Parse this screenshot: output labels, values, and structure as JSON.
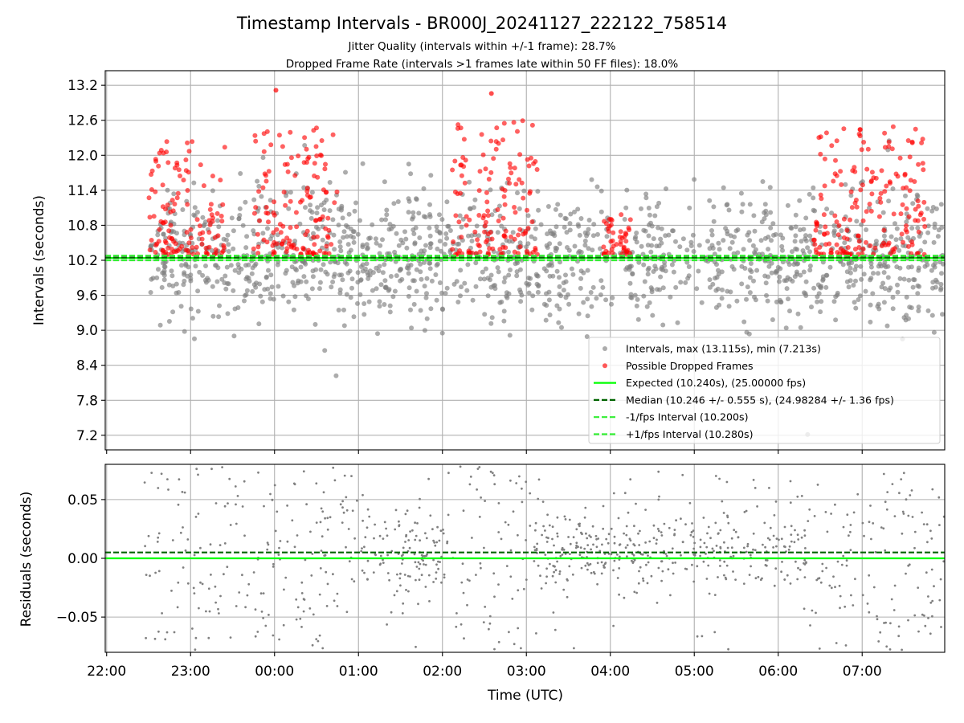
{
  "figure": {
    "title": "Timestamp Intervals - BR000J_20241127_222122_758514",
    "subtitle_lines": [
      "Jitter Quality (intervals within +/-1 frame): 28.7%",
      "Dropped Frame Rate (intervals >1 frames late within 50 FF files): 18.0%"
    ]
  },
  "chart_data": [
    {
      "type": "scatter",
      "panel": "intervals",
      "ylabel": "Intervals (seconds)",
      "ylim": [
        6.95,
        13.45
      ],
      "yticks": [
        7.2,
        7.8,
        8.4,
        9.0,
        9.6,
        10.2,
        10.8,
        11.4,
        12.0,
        12.6,
        13.2
      ],
      "ytick_labels": [
        "7.2",
        "7.8",
        "8.4",
        "9.0",
        "9.6",
        "10.2",
        "10.8",
        "11.4",
        "12.0",
        "12.6",
        "13.2"
      ],
      "grid": true,
      "legend_position": "lower-right",
      "series": [
        {
          "name": "Intervals, max (13.115s), min (7.213s)",
          "kind": "scatter",
          "color": "#808080",
          "time_range": [
            "22:31",
            "07:58"
          ],
          "max": 13.115,
          "min": 7.213
        },
        {
          "name": "Possible Dropped Frames",
          "kind": "scatter",
          "color": "#ff0000"
        },
        {
          "name": "Expected (10.240s), (25.00000 fps)",
          "kind": "hline",
          "y": 10.24,
          "color": "#00ff00",
          "style": "solid"
        },
        {
          "name": "Median (10.246 +/- 0.555 s), (24.98284 +/- 1.36 fps)",
          "kind": "hline",
          "y": 10.246,
          "color": "#006400",
          "style": "dashed"
        },
        {
          "name": "-1/fps Interval (10.200s)",
          "kind": "hline",
          "y": 10.2,
          "color": "#33ee33",
          "style": "dashed"
        },
        {
          "name": "+1/fps Interval (10.280s)",
          "kind": "hline",
          "y": 10.28,
          "color": "#33ee33",
          "style": "dashed"
        }
      ],
      "dropped_frame_clusters": [
        {
          "from": "22:30",
          "to": "23:25",
          "y_range": [
            10.3,
            12.3
          ]
        },
        {
          "from": "23:45",
          "to": "00:45",
          "y_range": [
            10.3,
            12.5
          ]
        },
        {
          "from": "02:07",
          "to": "03:08",
          "y_range": [
            10.3,
            12.6
          ]
        },
        {
          "from": "03:55",
          "to": "04:15",
          "y_range": [
            10.3,
            11.0
          ]
        },
        {
          "from": "06:25",
          "to": "07:45",
          "y_range": [
            10.3,
            12.5
          ]
        }
      ],
      "notable_points": [
        {
          "x": "00:01",
          "y": 13.115
        },
        {
          "x": "02:35",
          "y": 13.06
        },
        {
          "x": "06:21",
          "y": 7.213
        }
      ]
    },
    {
      "type": "scatter",
      "panel": "residuals",
      "ylabel": "Residuals (seconds)",
      "xlabel": "Time (UTC)",
      "ylim": [
        -0.08,
        0.08
      ],
      "yticks": [
        0.05,
        0.0,
        -0.05
      ],
      "ytick_labels": [
        "0.05",
        "0.00",
        "−0.05"
      ],
      "x_range": [
        "21:59",
        "07:59"
      ],
      "xtick_labels": [
        "22:00",
        "23:00",
        "00:00",
        "01:00",
        "02:00",
        "03:00",
        "04:00",
        "05:00",
        "06:00",
        "07:00"
      ],
      "grid": true,
      "series": [
        {
          "kind": "scatter",
          "color": "#808080",
          "time_range": [
            "22:27",
            "07:59"
          ],
          "dense_range": [
            "04:30",
            "06:20"
          ]
        },
        {
          "kind": "hline",
          "y": 0.0,
          "color": "#00ff00",
          "style": "solid"
        },
        {
          "kind": "hline",
          "y": 0.005,
          "color": "#006400",
          "style": "dashed"
        }
      ]
    }
  ]
}
